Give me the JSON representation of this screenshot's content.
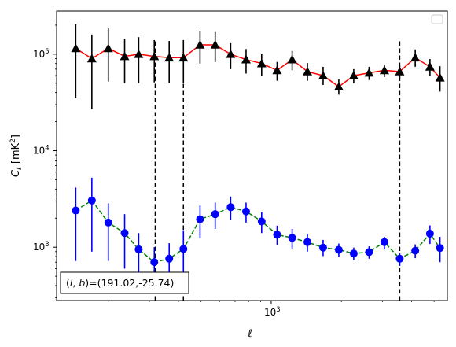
{
  "chart_data": {
    "type": "scatter",
    "title": "",
    "xlabel": "ℓ",
    "ylabel": "C_ℓ [mK²]",
    "xscale": "log",
    "yscale": "log",
    "xlim": [
      120,
      5700
    ],
    "ylim": [
      280,
      280000
    ],
    "xticks": [
      {
        "value": 1000,
        "base": "10",
        "exp": "3"
      }
    ],
    "yticks": [
      {
        "value": 1000,
        "base": "10",
        "exp": "3"
      },
      {
        "value": 10000,
        "base": "10",
        "exp": "4"
      },
      {
        "value": 100000,
        "base": "10",
        "exp": "5"
      }
    ],
    "grid": false,
    "legend": "top-right (empty)",
    "x": [
      145,
      170,
      200,
      235,
      270,
      315,
      365,
      420,
      495,
      575,
      670,
      780,
      910,
      1060,
      1230,
      1430,
      1670,
      1950,
      2260,
      2630,
      3060,
      3560,
      4150,
      4800,
      5300
    ],
    "series": [
      {
        "color": "#ff0000",
        "marker": "triangle",
        "marker_color": "#000000",
        "errorbar_color": "#000000",
        "linestyle": "solid",
        "values": [
          115000,
          90000,
          115000,
          95000,
          100000,
          95000,
          92000,
          92000,
          125000,
          125000,
          100000,
          88000,
          80000,
          68000,
          88000,
          66000,
          60000,
          46000,
          60000,
          64000,
          68000,
          66000,
          92000,
          74000,
          57000
        ],
        "err_lo": [
          80000,
          63000,
          63000,
          45000,
          50000,
          44000,
          42000,
          42000,
          45000,
          42000,
          30000,
          25000,
          20000,
          15000,
          20000,
          13000,
          12000,
          8000,
          10000,
          10000,
          10000,
          10000,
          18000,
          14000,
          16000
        ],
        "err_hi": [
          90000,
          70000,
          70000,
          50000,
          50000,
          45000,
          45000,
          48000,
          50000,
          45000,
          30000,
          25000,
          20000,
          15000,
          20000,
          15000,
          14000,
          9000,
          10000,
          10000,
          10000,
          10000,
          20000,
          15000,
          18000
        ]
      },
      {
        "color": "#008000",
        "marker": "circle",
        "marker_color": "#0000ff",
        "errorbar_color": "#0000ff",
        "linestyle": "dashed",
        "values": [
          2400,
          3050,
          1800,
          1400,
          950,
          700,
          760,
          960,
          1950,
          2200,
          2600,
          2350,
          1850,
          1350,
          1250,
          1130,
          990,
          940,
          860,
          890,
          1130,
          760,
          920,
          1380,
          980
        ],
        "err_lo": [
          1680,
          2150,
          1080,
          800,
          550,
          300,
          360,
          460,
          700,
          650,
          700,
          550,
          450,
          300,
          280,
          230,
          180,
          150,
          130,
          130,
          180,
          120,
          150,
          300,
          280
        ],
        "err_hi": [
          1750,
          2200,
          1050,
          800,
          450,
          300,
          340,
          540,
          750,
          700,
          750,
          550,
          450,
          320,
          300,
          250,
          200,
          150,
          130,
          130,
          150,
          120,
          150,
          300,
          300
        ]
      }
    ],
    "vlines": [
      {
        "x": 318,
        "y_top": 140000,
        "color": "#000000",
        "linestyle": "dashed"
      },
      {
        "x": 420,
        "y_top": 140000,
        "color": "#000000",
        "linestyle": "dashed"
      },
      {
        "x": 3560,
        "y_top": 140000,
        "color": "#000000",
        "linestyle": "dashed"
      }
    ],
    "annotation": {
      "text": "(l, b)=(191.02,-25.74)",
      "prefix": "(",
      "l": "l",
      "comma": ", ",
      "b": "b",
      "suffix": ")=(191.02,-25.74)"
    }
  }
}
